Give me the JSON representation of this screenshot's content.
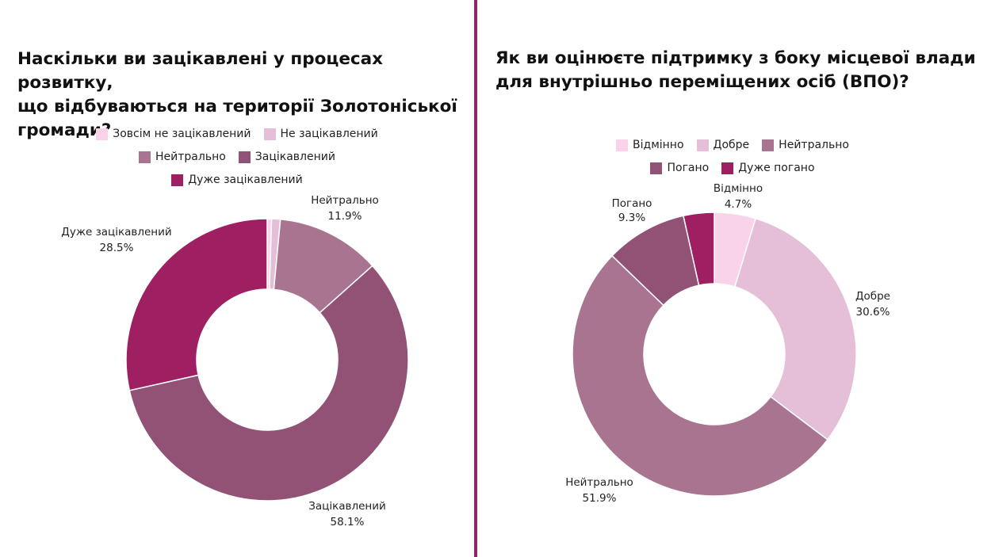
{
  "colors": {
    "divider": "#8b2a66",
    "palette": {
      "very_light": "#f9d3ea",
      "light": "#e5bfd8",
      "medium": "#a97490",
      "dark": "#925275",
      "darkest": "#9e1f62"
    }
  },
  "left": {
    "title_lines": [
      "Наскільки ви зацікавлені у процесах розвитку,",
      "що відбуваються на території Золотоніської",
      "громади?"
    ]
  },
  "right": {
    "title_lines": [
      "Як ви оцінюєте підтримку з боку місцевої влади",
      "для внутрішньо переміщених осіб (ВПО)?"
    ]
  },
  "chart_data": [
    {
      "type": "pie",
      "variant": "donut",
      "title": "Наскільки ви зацікавлені у процесах розвитку, що відбуваються на території Золотоніської громади?",
      "legend_placement": "top",
      "legend": [
        {
          "label": "Зовсім не зацікавлений",
          "color": "#f9d3ea"
        },
        {
          "label": "Не зацікавлений",
          "color": "#e5bfd8"
        },
        {
          "label": "Нейтрально",
          "color": "#a97490"
        },
        {
          "label": "Зацікавлений",
          "color": "#925275"
        },
        {
          "label": "Дуже зацікавлений",
          "color": "#9e1f62"
        }
      ],
      "slices": [
        {
          "label": "Зовсім не зацікавлений",
          "value": 0.5,
          "color": "#f9d3ea",
          "data_label": null
        },
        {
          "label": "Не зацікавлений",
          "value": 1.0,
          "color": "#e5bfd8",
          "data_label": null
        },
        {
          "label": "Нейтрально",
          "value": 11.9,
          "color": "#a97490",
          "data_label": "11.9%"
        },
        {
          "label": "Зацікавлений",
          "value": 58.1,
          "color": "#925275",
          "data_label": "58.1%"
        },
        {
          "label": "Дуже зацікавлений",
          "value": 28.5,
          "color": "#9e1f62",
          "data_label": "28.5%"
        }
      ]
    },
    {
      "type": "pie",
      "variant": "donut",
      "title": "Як ви оцінюєте підтримку з боку місцевої влади для внутрішньо переміщених осіб (ВПО)?",
      "legend_placement": "top",
      "legend": [
        {
          "label": "Відмінно",
          "color": "#f9d3ea"
        },
        {
          "label": "Добре",
          "color": "#e5bfd8"
        },
        {
          "label": "Нейтрально",
          "color": "#a97490"
        },
        {
          "label": "Погано",
          "color": "#925275"
        },
        {
          "label": "Дуже погано",
          "color": "#9e1f62"
        }
      ],
      "slices": [
        {
          "label": "Відмінно",
          "value": 4.7,
          "color": "#f9d3ea",
          "data_label": "4.7%"
        },
        {
          "label": "Добре",
          "value": 30.6,
          "color": "#e5bfd8",
          "data_label": "30.6%"
        },
        {
          "label": "Нейтрально",
          "value": 51.9,
          "color": "#a97490",
          "data_label": "51.9%"
        },
        {
          "label": "Погано",
          "value": 9.3,
          "color": "#925275",
          "data_label": "9.3%"
        },
        {
          "label": "Дуже погано",
          "value": 3.5,
          "color": "#9e1f62",
          "data_label": null
        }
      ]
    }
  ]
}
